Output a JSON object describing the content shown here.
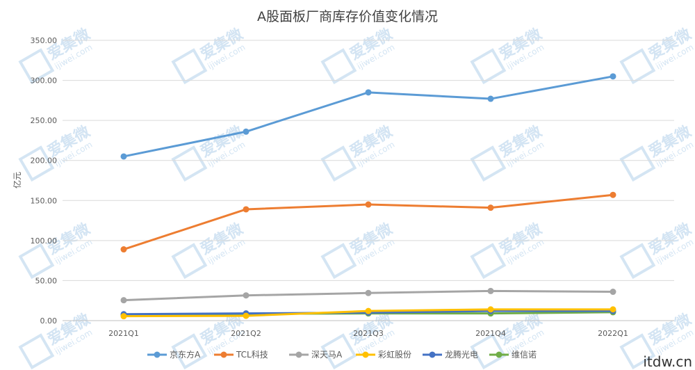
{
  "chart_data": {
    "type": "line",
    "title": "A股面板厂商库存价值变化情况",
    "ylabel": "亿元",
    "xlabel": "",
    "categories": [
      "2021Q1",
      "2021Q2",
      "2021Q3",
      "2021Q4",
      "2022Q1"
    ],
    "ylim": [
      0,
      350
    ],
    "yticks": [
      "0.00",
      "50.00",
      "100.00",
      "150.00",
      "200.00",
      "250.00",
      "300.00",
      "350.00"
    ],
    "grid": true,
    "legend_position": "bottom",
    "series": [
      {
        "name": "京东方A",
        "color": "#5b9bd5",
        "values": [
          205,
          236,
          285,
          277,
          305
        ]
      },
      {
        "name": "TCL科技",
        "color": "#ed7d31",
        "values": [
          89,
          139,
          145,
          141,
          157
        ]
      },
      {
        "name": "深天马A",
        "color": "#a5a5a5",
        "values": [
          25.5,
          31.5,
          34.5,
          37,
          36
        ]
      },
      {
        "name": "彩虹股份",
        "color": "#ffc000",
        "values": [
          5.5,
          6,
          12,
          14,
          14
        ]
      },
      {
        "name": "龙腾光电",
        "color": "#4472c4",
        "values": [
          8,
          9,
          10,
          12,
          12
        ]
      },
      {
        "name": "维信诺",
        "color": "#70ad47",
        "values": [
          7,
          8.5,
          9,
          9,
          10.5
        ]
      }
    ]
  },
  "watermark": {
    "text": "爱集微",
    "sub": "ijiwei.com",
    "color": "#c5dcef"
  },
  "corner_text": "itdw.cn"
}
